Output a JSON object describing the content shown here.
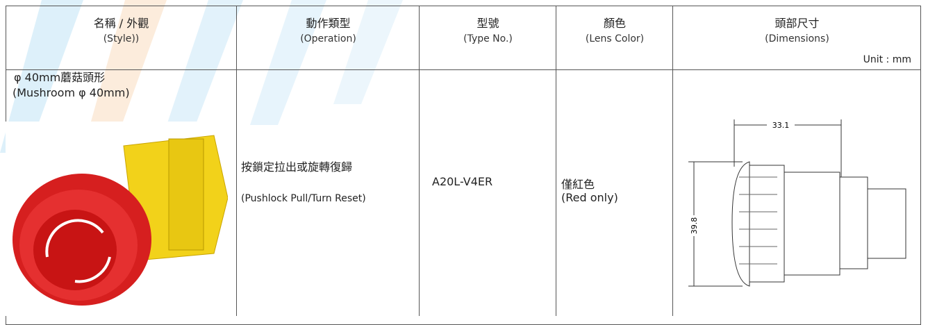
{
  "table": {
    "headers": [
      {
        "zh": "名稱 / 外觀",
        "en": "(Style))"
      },
      {
        "zh": "動作類型",
        "en": "(Operation)"
      },
      {
        "zh": "型號",
        "en": "(Type No.)"
      },
      {
        "zh": "顏色",
        "en": "(Lens Color)"
      },
      {
        "zh": "頭部尺寸",
        "en": "(Dimensions)"
      }
    ],
    "unit": "Unit : mm",
    "rows": [
      {
        "style": [
          "φ 40mm蘑菇頭形",
          "(Mushroom φ 40mm)"
        ],
        "operation": [
          "按鎖定拉出或旋轉復歸",
          "(Pushlock Pull/Turn Reset)"
        ],
        "type_no": "A20L-V4ER",
        "color": [
          "僅紅色",
          "(Red only)"
        ],
        "dimensions": {
          "width": "33.1",
          "height": "39.8"
        }
      }
    ]
  }
}
